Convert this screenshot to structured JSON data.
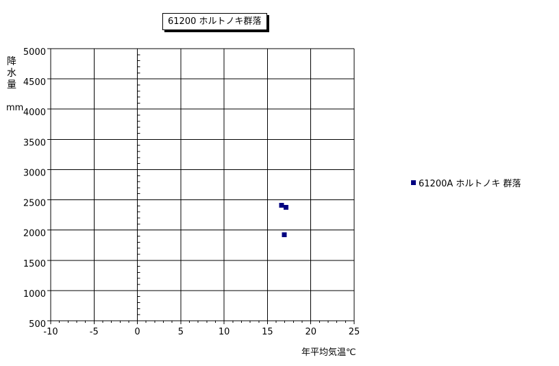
{
  "title_box": {
    "text": "61200 ホルトノキ群落"
  },
  "y_axis_label": {
    "text": "降水量",
    "unit": "mm"
  },
  "x_axis_label": {
    "text": "年平均気温℃"
  },
  "legend": {
    "items": [
      {
        "label": "61200A ホルトノキ 群落",
        "color": "#000080"
      }
    ]
  },
  "chart_data": {
    "type": "scatter",
    "title": "61200 ホルトノキ群落",
    "xlabel": "年平均気温℃",
    "ylabel": "降水量 (mm)",
    "xlim": [
      -10,
      25
    ],
    "ylim": [
      500,
      5000
    ],
    "x_major_step": 5,
    "x_minor_step": 1,
    "y_major_step": 500,
    "y_minor_step": 100,
    "grid": true,
    "legend_position": "right",
    "axis_color": "#000000",
    "background_color": "#ffffff",
    "series": [
      {
        "name": "61200A ホルトノキ 群落",
        "marker": "square",
        "marker_size": 7,
        "color": "#000080",
        "points": [
          {
            "x": 16.6,
            "y": 2415
          },
          {
            "x": 17.1,
            "y": 2380
          },
          {
            "x": 16.9,
            "y": 1930
          }
        ]
      }
    ]
  }
}
